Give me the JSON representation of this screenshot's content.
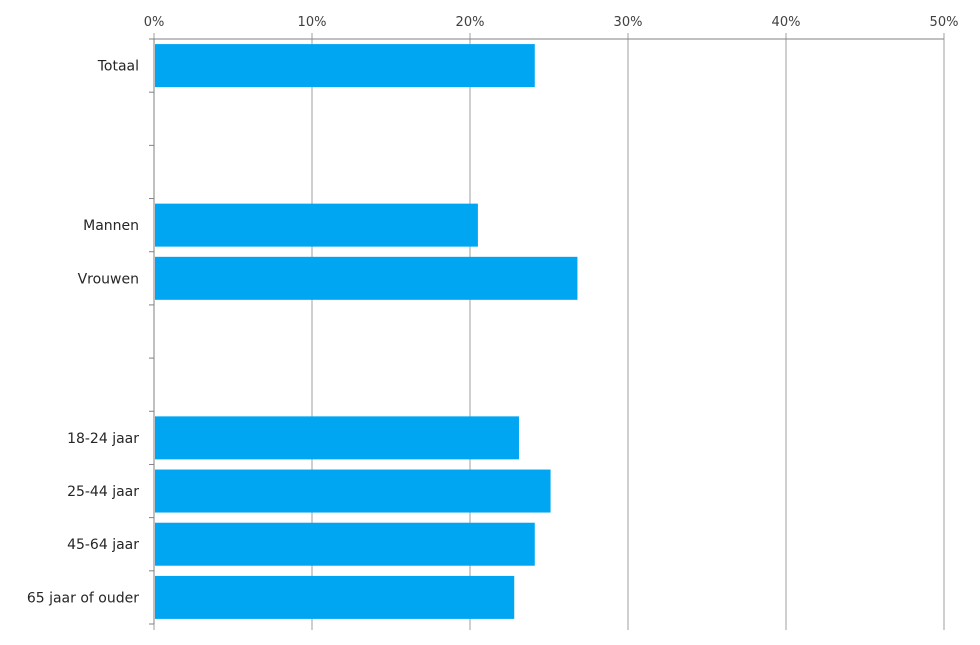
{
  "chart_data": {
    "type": "bar",
    "orientation": "horizontal",
    "slots": [
      "Totaal",
      "",
      "",
      "Mannen",
      "Vrouwen",
      "",
      "",
      "18-24 jaar",
      "25-44 jaar",
      "45-64 jaar",
      "65 jaar of ouder"
    ],
    "categories": [
      "Totaal",
      "Mannen",
      "Vrouwen",
      "18-24 jaar",
      "25-44 jaar",
      "45-64 jaar",
      "65 jaar of ouder"
    ],
    "values": [
      24.1,
      20.5,
      26.8,
      23.1,
      25.1,
      24.1,
      22.8
    ],
    "xlim": [
      0,
      50
    ],
    "xticks": [
      0,
      10,
      20,
      30,
      40,
      50
    ],
    "tick_suffix": "%",
    "axis_position": "top",
    "grid": true,
    "legend": "none",
    "title": "",
    "xlabel": "",
    "ylabel": ""
  },
  "colors": {
    "bar": "#00A6F2",
    "grid": "#9f9f9f",
    "axis": "#808080"
  }
}
